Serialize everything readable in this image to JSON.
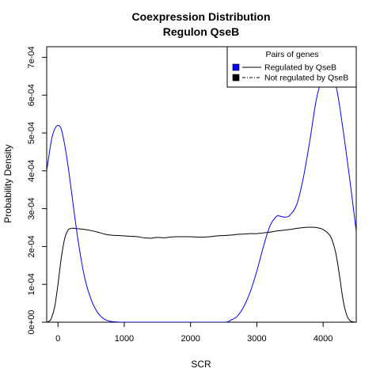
{
  "chart_data": {
    "type": "line",
    "title_lines": [
      "Coexpression Distribution",
      "Regulon QseB"
    ],
    "xlabel": "SCR",
    "ylabel": "Probability Density",
    "xlim": [
      -170,
      4500
    ],
    "ylim": [
      0,
      0.000728
    ],
    "x_ticks": [
      0,
      1000,
      2000,
      3000,
      4000
    ],
    "x_tick_labels": [
      "0",
      "1000",
      "2000",
      "3000",
      "4000"
    ],
    "y_ticks": [
      0,
      0.0001,
      0.0002,
      0.0003,
      0.0004,
      0.0005,
      0.0006,
      0.0007
    ],
    "y_tick_labels": [
      "0e+00",
      "1e-04",
      "2e-04",
      "3e-04",
      "4e-04",
      "5e-04",
      "6e-04",
      "7e-04"
    ],
    "grid": false,
    "legend": {
      "title": "Pairs of genes",
      "placement": "top-right",
      "entries": [
        "Regulated by QseB",
        "Not regulated by QseB"
      ]
    },
    "series": [
      {
        "name": "Regulated by QseB",
        "color": "#0000ff",
        "x": [
          -170,
          -100,
          -50,
          0,
          50,
          100,
          150,
          200,
          300,
          400,
          500,
          600,
          700,
          800,
          900,
          1000,
          1500,
          2000,
          2500,
          2600,
          2700,
          2800,
          2900,
          3000,
          3100,
          3200,
          3300,
          3350,
          3400,
          3450,
          3500,
          3600,
          3700,
          3800,
          3900,
          4000,
          4100,
          4200,
          4300,
          4400,
          4500
        ],
        "y": [
          0.0004,
          0.00048,
          0.00051,
          0.00052,
          0.00051,
          0.00047,
          0.000415,
          0.00035,
          0.00022,
          0.00012,
          6e-05,
          2.5e-05,
          8e-06,
          2e-06,
          5e-07,
          0.0,
          0.0,
          0.0,
          0.0,
          5e-06,
          1.5e-05,
          4e-05,
          8e-05,
          0.000135,
          0.0002,
          0.000255,
          0.00028,
          0.00028,
          0.000278,
          0.000278,
          0.000283,
          0.00031,
          0.00038,
          0.00048,
          0.00059,
          0.00065,
          0.00066,
          0.00062,
          0.00051,
          0.00038,
          0.00024
        ]
      },
      {
        "name": "Not regulated by QseB",
        "color": "#000000",
        "x": [
          -170,
          -130,
          -100,
          -50,
          0,
          50,
          100,
          150,
          200,
          250,
          300,
          400,
          500,
          600,
          700,
          800,
          900,
          1000,
          1100,
          1200,
          1300,
          1400,
          1500,
          1600,
          1700,
          1800,
          1900,
          2000,
          2100,
          2200,
          2300,
          2400,
          2500,
          2600,
          2700,
          2800,
          2900,
          3000,
          3100,
          3200,
          3300,
          3400,
          3500,
          3600,
          3700,
          3800,
          3900,
          4000,
          4100,
          4150,
          4200,
          4250,
          4300,
          4350,
          4400,
          4450,
          4500
        ],
        "y": [
          0.0,
          3e-06,
          1e-05,
          4e-05,
          0.0001,
          0.00017,
          0.00022,
          0.000243,
          0.000248,
          0.000248,
          0.000247,
          0.000245,
          0.000242,
          0.000238,
          0.000233,
          0.00023,
          0.000229,
          0.000228,
          0.000227,
          0.000226,
          0.000223,
          0.000222,
          0.000224,
          0.000223,
          0.000225,
          0.000226,
          0.000226,
          0.000226,
          0.000225,
          0.000225,
          0.000226,
          0.000228,
          0.000229,
          0.00023,
          0.000232,
          0.000233,
          0.000234,
          0.000234,
          0.000236,
          0.000238,
          0.000241,
          0.000243,
          0.000245,
          0.000248,
          0.00025,
          0.000251,
          0.00025,
          0.000245,
          0.00023,
          0.00021,
          0.000175,
          0.00012,
          6e-05,
          2.2e-05,
          5e-06,
          1e-06,
          0.0
        ]
      }
    ]
  }
}
